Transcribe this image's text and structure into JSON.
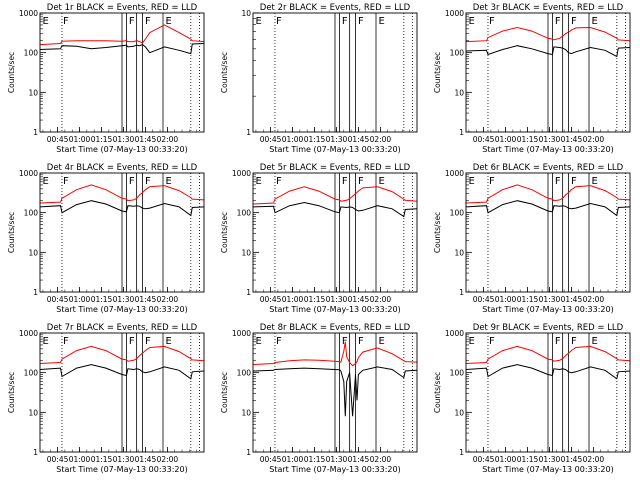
{
  "figure": {
    "background": "#ffffff",
    "events_color": "#000000",
    "lld_color": "#ff0000",
    "ylabel": "Counts/sec",
    "xlabel": "Start Time (07-May-13 00:33:20)",
    "flag_labels": [
      "E",
      "F",
      "F",
      "F",
      "E"
    ]
  },
  "chart_data": [
    {
      "type": "line",
      "title": "Det 1r BLACK = Events, RED = LLD",
      "xlabel": "Start Time (07-May-13 00:33:20)",
      "ylabel": "Counts/sec",
      "x_ticks": [
        "00:45",
        "01:00",
        "01:15",
        "01:30",
        "01:45",
        "02:00"
      ],
      "y_ticks": [
        "1",
        "10",
        "100",
        "1000"
      ],
      "y_scale": "log",
      "ylim": [
        1,
        1000
      ],
      "x": [
        0,
        14,
        15,
        25,
        35,
        45,
        56,
        59,
        60,
        64,
        66,
        68,
        70,
        72,
        75,
        85,
        95,
        103,
        104,
        112
      ],
      "series": [
        {
          "color": "#000000",
          "values": [
            120,
            125,
            150,
            145,
            125,
            135,
            150,
            155,
            140,
            145,
            155,
            150,
            160,
            140,
            100,
            140,
            115,
            95,
            165,
            170
          ]
        },
        {
          "color": "#ff0000",
          "values": [
            160,
            170,
            195,
            200,
            200,
            200,
            195,
            200,
            190,
            190,
            200,
            190,
            175,
            220,
            320,
            500,
            320,
            220,
            200,
            190
          ]
        }
      ],
      "flags": [
        "E",
        "F",
        "F",
        "F",
        "E"
      ],
      "vertical_lines": [
        15,
        56,
        59,
        66,
        70,
        84,
        103
      ]
    },
    {
      "type": "line",
      "title": "Det 2r BLACK = Events, RED = LLD",
      "xlabel": "Start Time (07-May-13 00:33:20)",
      "ylabel": "Counts/sec",
      "x_ticks": [
        "00:45",
        "01:00",
        "01:15",
        "01:30",
        "01:45",
        "02:00"
      ],
      "y_ticks": [
        "1",
        "10"
      ],
      "y_scale": "log",
      "ylim": [
        1,
        10
      ],
      "x": [],
      "series": [],
      "flags": [
        "E",
        "F",
        "F",
        "F",
        "E"
      ],
      "vertical_lines": [
        15,
        56,
        59,
        66,
        70,
        84,
        103
      ]
    },
    {
      "type": "line",
      "title": "Det 3r BLACK = Events, RED = LLD",
      "xlabel": "Start Time (07-May-13 00:33:20)",
      "ylabel": "Counts/sec",
      "x_ticks": [
        "00:45",
        "01:00",
        "01:15",
        "01:30",
        "01:45",
        "02:00"
      ],
      "y_ticks": [
        "1",
        "10",
        "100",
        "1000"
      ],
      "y_scale": "log",
      "ylim": [
        1,
        1000
      ],
      "x": [
        0,
        14,
        15,
        25,
        35,
        45,
        56,
        59,
        60,
        64,
        66,
        68,
        70,
        72,
        75,
        85,
        95,
        103,
        104,
        112
      ],
      "series": [
        {
          "color": "#000000",
          "values": [
            110,
            115,
            90,
            120,
            150,
            125,
            95,
            90,
            140,
            135,
            130,
            120,
            100,
            95,
            105,
            135,
            115,
            80,
            130,
            135
          ]
        },
        {
          "color": "#ff0000",
          "values": [
            190,
            200,
            240,
            350,
            430,
            350,
            230,
            220,
            210,
            230,
            260,
            300,
            330,
            370,
            420,
            430,
            330,
            230,
            210,
            200
          ]
        }
      ],
      "flags": [
        "E",
        "F",
        "F",
        "F",
        "E"
      ],
      "vertical_lines": [
        15,
        56,
        59,
        66,
        70,
        84,
        103
      ]
    },
    {
      "type": "line",
      "title": "Det 4r BLACK = Events, RED = LLD",
      "xlabel": "Start Time (07-May-13 00:33:20)",
      "ylabel": "Counts/sec",
      "x_ticks": [
        "00:45",
        "01:00",
        "01:15",
        "01:30",
        "01:45",
        "02:00"
      ],
      "y_ticks": [
        "1",
        "10",
        "100",
        "1000"
      ],
      "y_scale": "log",
      "ylim": [
        1,
        1000
      ],
      "x": [
        0,
        14,
        15,
        25,
        35,
        45,
        56,
        59,
        60,
        64,
        66,
        68,
        70,
        72,
        75,
        85,
        95,
        103,
        104,
        112
      ],
      "series": [
        {
          "color": "#000000",
          "values": [
            140,
            150,
            100,
            160,
            200,
            165,
            110,
            105,
            150,
            145,
            150,
            145,
            130,
            125,
            130,
            170,
            140,
            85,
            135,
            140
          ]
        },
        {
          "color": "#ff0000",
          "values": [
            175,
            185,
            230,
            380,
            500,
            380,
            230,
            220,
            200,
            210,
            230,
            280,
            320,
            380,
            450,
            480,
            360,
            240,
            220,
            210
          ]
        }
      ],
      "flags": [
        "E",
        "F",
        "F",
        "F",
        "E"
      ],
      "vertical_lines": [
        15,
        56,
        59,
        66,
        70,
        84,
        103
      ]
    },
    {
      "type": "line",
      "title": "Det 5r BLACK = Events, RED = LLD",
      "xlabel": "Start Time (07-May-13 00:33:20)",
      "ylabel": "Counts/sec",
      "x_ticks": [
        "00:45",
        "01:00",
        "01:15",
        "01:30",
        "01:45",
        "02:00"
      ],
      "y_ticks": [
        "1",
        "10",
        "100",
        "1000"
      ],
      "y_scale": "log",
      "ylim": [
        1,
        1000
      ],
      "x": [
        0,
        14,
        15,
        25,
        35,
        45,
        56,
        59,
        60,
        64,
        66,
        68,
        70,
        72,
        75,
        85,
        95,
        103,
        104,
        112
      ],
      "series": [
        {
          "color": "#000000",
          "values": [
            140,
            145,
            100,
            150,
            180,
            150,
            105,
            100,
            140,
            135,
            140,
            135,
            120,
            110,
            115,
            150,
            125,
            80,
            120,
            125
          ]
        },
        {
          "color": "#ff0000",
          "values": [
            165,
            175,
            220,
            350,
            450,
            350,
            220,
            210,
            195,
            205,
            225,
            260,
            300,
            350,
            420,
            450,
            340,
            220,
            205,
            195
          ]
        }
      ],
      "flags": [
        "E",
        "F",
        "F",
        "F",
        "E"
      ],
      "vertical_lines": [
        15,
        56,
        59,
        66,
        70,
        84,
        103
      ]
    },
    {
      "type": "line",
      "title": "Det 6r BLACK = Events, RED = LLD",
      "xlabel": "Start Time (07-May-13 00:33:20)",
      "ylabel": "Counts/sec",
      "x_ticks": [
        "00:45",
        "01:00",
        "01:15",
        "01:30",
        "01:45",
        "02:00"
      ],
      "y_ticks": [
        "1",
        "10",
        "100",
        "1000"
      ],
      "y_scale": "log",
      "ylim": [
        1,
        1000
      ],
      "x": [
        0,
        14,
        15,
        25,
        35,
        45,
        56,
        59,
        60,
        64,
        66,
        68,
        70,
        72,
        75,
        85,
        95,
        103,
        104,
        112
      ],
      "series": [
        {
          "color": "#000000",
          "values": [
            140,
            150,
            100,
            160,
            200,
            165,
            110,
            105,
            150,
            145,
            150,
            145,
            130,
            125,
            130,
            170,
            140,
            85,
            135,
            140
          ]
        },
        {
          "color": "#ff0000",
          "values": [
            175,
            185,
            230,
            380,
            500,
            380,
            230,
            220,
            200,
            210,
            230,
            280,
            320,
            380,
            450,
            480,
            360,
            240,
            220,
            210
          ]
        }
      ],
      "flags": [
        "E",
        "F",
        "F",
        "F",
        "E"
      ],
      "vertical_lines": [
        15,
        56,
        59,
        66,
        70,
        84,
        103
      ]
    },
    {
      "type": "line",
      "title": "Det 7r BLACK = Events, RED = LLD",
      "xlabel": "Start Time (07-May-13 00:33:20)",
      "ylabel": "Counts/sec",
      "x_ticks": [
        "00:45",
        "01:00",
        "01:15",
        "01:30",
        "01:45",
        "02:00"
      ],
      "y_ticks": [
        "1",
        "10",
        "100",
        "1000"
      ],
      "y_scale": "log",
      "ylim": [
        1,
        1000
      ],
      "x": [
        0,
        14,
        15,
        25,
        35,
        45,
        56,
        59,
        60,
        64,
        66,
        68,
        70,
        72,
        75,
        85,
        95,
        103,
        104,
        112
      ],
      "series": [
        {
          "color": "#000000",
          "values": [
            120,
            130,
            80,
            130,
            160,
            130,
            90,
            85,
            125,
            120,
            125,
            120,
            105,
            100,
            105,
            140,
            115,
            70,
            105,
            110
          ]
        },
        {
          "color": "#ff0000",
          "values": [
            170,
            180,
            220,
            360,
            460,
            360,
            220,
            210,
            195,
            205,
            225,
            270,
            310,
            360,
            430,
            460,
            340,
            225,
            210,
            200
          ]
        }
      ],
      "flags": [
        "E",
        "F",
        "F",
        "F",
        "E"
      ],
      "vertical_lines": [
        15,
        56,
        59,
        66,
        70,
        84,
        103
      ]
    },
    {
      "type": "line",
      "title": "Det 8r BLACK = Events, RED = LLD",
      "xlabel": "Start Time (07-May-13 00:33:20)",
      "ylabel": "Counts/sec",
      "x_ticks": [
        "00:45",
        "01:00",
        "01:15",
        "01:30",
        "01:45",
        "02:00"
      ],
      "y_ticks": [
        "1",
        "10",
        "100",
        "1000"
      ],
      "y_scale": "log",
      "ylim": [
        1,
        1000
      ],
      "x": [
        0,
        14,
        15,
        25,
        35,
        45,
        56,
        59,
        60,
        62,
        63,
        64,
        66,
        68,
        70,
        71,
        72,
        75,
        85,
        95,
        103,
        104,
        112
      ],
      "series": [
        {
          "color": "#000000",
          "values": [
            110,
            115,
            120,
            125,
            130,
            125,
            120,
            118,
            110,
            60,
            8,
            60,
            100,
            8,
            90,
            20,
            90,
            115,
            140,
            120,
            75,
            110,
            115
          ]
        },
        {
          "color": "#ff0000",
          "values": [
            160,
            170,
            180,
            200,
            210,
            205,
            195,
            190,
            185,
            350,
            600,
            250,
            180,
            150,
            170,
            190,
            240,
            330,
            420,
            300,
            200,
            190,
            185
          ]
        }
      ],
      "flags": [
        "E",
        "F",
        "F",
        "F",
        "E"
      ],
      "vertical_lines": [
        15,
        56,
        59,
        66,
        70,
        84,
        103
      ]
    },
    {
      "type": "line",
      "title": "Det 9r BLACK = Events, RED = LLD",
      "xlabel": "Start Time (07-May-13 00:33:20)",
      "ylabel": "Counts/sec",
      "x_ticks": [
        "00:45",
        "01:00",
        "01:15",
        "01:30",
        "01:45",
        "02:00"
      ],
      "y_ticks": [
        "1",
        "10",
        "100",
        "1000"
      ],
      "y_scale": "log",
      "ylim": [
        1,
        1000
      ],
      "x": [
        0,
        14,
        15,
        25,
        35,
        45,
        56,
        59,
        60,
        64,
        66,
        68,
        70,
        72,
        75,
        85,
        95,
        103,
        104,
        112
      ],
      "series": [
        {
          "color": "#000000",
          "values": [
            120,
            130,
            80,
            130,
            160,
            130,
            90,
            85,
            125,
            120,
            125,
            120,
            105,
            100,
            105,
            140,
            115,
            70,
            105,
            110
          ]
        },
        {
          "color": "#ff0000",
          "values": [
            170,
            180,
            220,
            360,
            460,
            360,
            220,
            210,
            195,
            205,
            225,
            270,
            310,
            360,
            430,
            460,
            340,
            225,
            210,
            200
          ]
        }
      ],
      "flags": [
        "E",
        "F",
        "F",
        "F",
        "E"
      ],
      "vertical_lines": [
        15,
        56,
        59,
        66,
        70,
        84,
        103
      ]
    }
  ]
}
